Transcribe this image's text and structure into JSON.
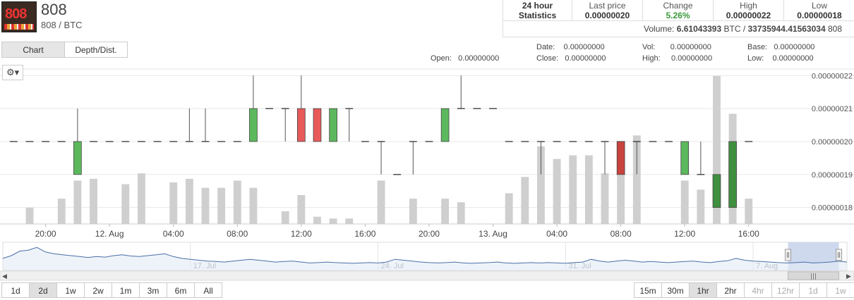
{
  "header": {
    "logo_text": "808",
    "title": "808",
    "subtitle": "808 / BTC"
  },
  "stats": {
    "label_24h": "24 hour Statistics",
    "last_price_label": "Last price",
    "last_price": "0.00000020",
    "change_label": "Change",
    "change": "5.26%",
    "high_label": "High",
    "high": "0.00000022",
    "low_label": "Low",
    "low": "0.00000018",
    "volume_prefix": "Volume:",
    "volume_btc": "6.61043393",
    "volume_btc_unit": "BTC /",
    "volume_token": "33735944.41563034",
    "volume_token_unit": "808"
  },
  "tabs": {
    "chart": "Chart",
    "depth": "Depth/Dist."
  },
  "info": {
    "open_label": "Open:",
    "open": "0.00000000",
    "date_label": "Date:",
    "date": "0.00000000",
    "close_label": "Close:",
    "close": "0.00000000",
    "vol_label": "Vol:",
    "vol": "0.00000000",
    "high_label": "High:",
    "high": "0.00000000",
    "base_label": "Base:",
    "base": "0.00000000",
    "low_label": "Low:",
    "low": "0.00000000"
  },
  "gear_icon": "gear-icon",
  "colors": {
    "up": "#5cb85c",
    "down": "#e85a5a",
    "up_dark": "#3f8f3f",
    "down_dark": "#c8433e",
    "volume": "#cfcfcf",
    "navigator_line": "#4a6fa5",
    "navigator_sel": "#c9d5ec",
    "change": "#3a9a3a"
  },
  "chart_data": {
    "type": "candlestick",
    "ylim": [
      1.75e-07,
      2.22e-07
    ],
    "y_ticks": [
      "0.00000022",
      "0.00000021",
      "0.00000020",
      "0.00000019",
      "0.00000018"
    ],
    "y_tick_values": [
      2.2e-07,
      2.1e-07,
      2e-07,
      1.9e-07,
      1.8e-07
    ],
    "x_ticks": [
      "20:00",
      "12. Aug",
      "04:00",
      "08:00",
      "12:00",
      "16:00",
      "20:00",
      "13. Aug",
      "04:00",
      "08:00",
      "12:00",
      "16:00"
    ],
    "x_tick_hours": [
      0,
      4,
      8,
      12,
      16,
      20,
      24,
      28,
      32,
      36,
      40,
      44
    ],
    "x_range_hours": [
      -2.5,
      47.5
    ],
    "candles": [
      {
        "t": -2,
        "o": 2e-07,
        "h": 2e-07,
        "l": 2e-07,
        "c": 2e-07,
        "v": 0.0
      },
      {
        "t": -1,
        "o": 2e-07,
        "h": 2e-07,
        "l": 2e-07,
        "c": 2e-07,
        "v": 0.9
      },
      {
        "t": 0,
        "o": 2e-07,
        "h": 2e-07,
        "l": 2e-07,
        "c": 2e-07,
        "v": 0.0
      },
      {
        "t": 1,
        "o": 2e-07,
        "h": 2e-07,
        "l": 2e-07,
        "c": 2e-07,
        "v": 1.4
      },
      {
        "t": 2,
        "o": 1.9e-07,
        "h": 2.1e-07,
        "l": 1.9e-07,
        "c": 2e-07,
        "v": 2.4
      },
      {
        "t": 3,
        "o": 2e-07,
        "h": 2e-07,
        "l": 2e-07,
        "c": 2e-07,
        "v": 2.5
      },
      {
        "t": 4,
        "o": 2e-07,
        "h": 2e-07,
        "l": 2e-07,
        "c": 2e-07,
        "v": 0.0
      },
      {
        "t": 5,
        "o": 2e-07,
        "h": 2e-07,
        "l": 2e-07,
        "c": 2e-07,
        "v": 2.2
      },
      {
        "t": 6,
        "o": 2e-07,
        "h": 2e-07,
        "l": 2e-07,
        "c": 2e-07,
        "v": 2.8
      },
      {
        "t": 7,
        "o": 2e-07,
        "h": 2e-07,
        "l": 2e-07,
        "c": 2e-07,
        "v": 0.0
      },
      {
        "t": 8,
        "o": 2e-07,
        "h": 2e-07,
        "l": 2e-07,
        "c": 2e-07,
        "v": 2.3
      },
      {
        "t": 9,
        "o": 2e-07,
        "h": 2.1e-07,
        "l": 2e-07,
        "c": 2e-07,
        "v": 2.5
      },
      {
        "t": 10,
        "o": 2e-07,
        "h": 2.1e-07,
        "l": 2e-07,
        "c": 2e-07,
        "v": 2.0
      },
      {
        "t": 11,
        "o": 2e-07,
        "h": 2e-07,
        "l": 2e-07,
        "c": 2e-07,
        "v": 2.0
      },
      {
        "t": 12,
        "o": 2e-07,
        "h": 2e-07,
        "l": 2e-07,
        "c": 2e-07,
        "v": 2.4
      },
      {
        "t": 13,
        "o": 2e-07,
        "h": 2.2e-07,
        "l": 2e-07,
        "c": 2.1e-07,
        "v": 2.0
      },
      {
        "t": 14,
        "o": 2.1e-07,
        "h": 2.1e-07,
        "l": 2.1e-07,
        "c": 2.1e-07,
        "v": 0.0
      },
      {
        "t": 15,
        "o": 2.1e-07,
        "h": 2.1e-07,
        "l": 2e-07,
        "c": 2.1e-07,
        "v": 0.7
      },
      {
        "t": 16,
        "o": 2.1e-07,
        "h": 2.2e-07,
        "l": 2e-07,
        "c": 2e-07,
        "v": 1.6
      },
      {
        "t": 17,
        "o": 2.1e-07,
        "h": 2.1e-07,
        "l": 2e-07,
        "c": 2e-07,
        "v": 0.4
      },
      {
        "t": 18,
        "o": 2e-07,
        "h": 2.1e-07,
        "l": 2e-07,
        "c": 2.1e-07,
        "v": 0.3
      },
      {
        "t": 19,
        "o": 2.1e-07,
        "h": 2.1e-07,
        "l": 2e-07,
        "c": 2.1e-07,
        "v": 0.3
      },
      {
        "t": 20,
        "o": 2e-07,
        "h": 2e-07,
        "l": 2e-07,
        "c": 2e-07,
        "v": 0.0
      },
      {
        "t": 21,
        "o": 2e-07,
        "h": 2e-07,
        "l": 1.9e-07,
        "c": 2e-07,
        "v": 2.4
      },
      {
        "t": 22,
        "o": 1.9e-07,
        "h": 1.9e-07,
        "l": 1.9e-07,
        "c": 1.9e-07,
        "v": 0.0
      },
      {
        "t": 23,
        "o": 2e-07,
        "h": 2e-07,
        "l": 1.9e-07,
        "c": 2e-07,
        "v": 1.4
      },
      {
        "t": 24,
        "o": 2e-07,
        "h": 2e-07,
        "l": 2e-07,
        "c": 2e-07,
        "v": 0.0
      },
      {
        "t": 25,
        "o": 2e-07,
        "h": 2.1e-07,
        "l": 2e-07,
        "c": 2.1e-07,
        "v": 1.4
      },
      {
        "t": 26,
        "o": 2.1e-07,
        "h": 2.2e-07,
        "l": 2.1e-07,
        "c": 2.1e-07,
        "v": 1.2
      },
      {
        "t": 27,
        "o": 2.1e-07,
        "h": 2.1e-07,
        "l": 2.1e-07,
        "c": 2.1e-07,
        "v": 0.0
      },
      {
        "t": 28,
        "o": 2.1e-07,
        "h": 2.1e-07,
        "l": 2.1e-07,
        "c": 2.1e-07,
        "v": 0.0
      },
      {
        "t": 29,
        "o": 2e-07,
        "h": 2e-07,
        "l": 2e-07,
        "c": 2e-07,
        "v": 1.7
      },
      {
        "t": 30,
        "o": 2e-07,
        "h": 2e-07,
        "l": 2e-07,
        "c": 2e-07,
        "v": 2.6
      },
      {
        "t": 31,
        "o": 2e-07,
        "h": 2e-07,
        "l": 1.9e-07,
        "c": 2e-07,
        "v": 4.3
      },
      {
        "t": 32,
        "o": 2e-07,
        "h": 2e-07,
        "l": 2e-07,
        "c": 2e-07,
        "v": 3.6
      },
      {
        "t": 33,
        "o": 2e-07,
        "h": 2e-07,
        "l": 2e-07,
        "c": 2e-07,
        "v": 3.8
      },
      {
        "t": 34,
        "o": 2e-07,
        "h": 2e-07,
        "l": 2e-07,
        "c": 2e-07,
        "v": 3.8
      },
      {
        "t": 35,
        "o": 2e-07,
        "h": 2e-07,
        "l": 1.9e-07,
        "c": 2e-07,
        "v": 2.8
      },
      {
        "t": 36,
        "o": 2e-07,
        "h": 2e-07,
        "l": 1.9e-07,
        "c": 1.9e-07,
        "v": 4.6
      },
      {
        "t": 37,
        "o": 2e-07,
        "h": 2e-07,
        "l": 1.9e-07,
        "c": 2e-07,
        "v": 4.9
      },
      {
        "t": 38,
        "o": 2e-07,
        "h": 2e-07,
        "l": 2e-07,
        "c": 2e-07,
        "v": 0.0
      },
      {
        "t": 39,
        "o": 2e-07,
        "h": 2e-07,
        "l": 2e-07,
        "c": 2e-07,
        "v": 0.0
      },
      {
        "t": 40,
        "o": 1.9e-07,
        "h": 2e-07,
        "l": 1.9e-07,
        "c": 2e-07,
        "v": 2.4
      },
      {
        "t": 41,
        "o": 1.9e-07,
        "h": 2e-07,
        "l": 1.9e-07,
        "c": 1.9e-07,
        "v": 1.9
      },
      {
        "t": 42,
        "o": 1.8e-07,
        "h": 1.9e-07,
        "l": 1.8e-07,
        "c": 1.9e-07,
        "v": 8.2
      },
      {
        "t": 43,
        "o": 1.8e-07,
        "h": 2e-07,
        "l": 1.8e-07,
        "c": 2e-07,
        "v": 6.1
      },
      {
        "t": 44,
        "o": 2e-07,
        "h": 2e-07,
        "l": 2e-07,
        "c": 2e-07,
        "v": 1.4
      }
    ],
    "volume_max": 8.5,
    "navigator": {
      "labels": [
        "17. Jul",
        "24. Jul",
        "31. Jul",
        "7. Aug"
      ],
      "label_days": [
        7,
        14,
        21,
        28
      ],
      "day_range": [
        0,
        31.5
      ],
      "selection_days": [
        29.3,
        31.2
      ],
      "series": [
        0.35,
        0.5,
        0.75,
        0.8,
        0.95,
        0.7,
        0.6,
        0.55,
        0.5,
        0.45,
        0.4,
        0.45,
        0.42,
        0.5,
        0.55,
        0.48,
        0.45,
        0.5,
        0.55,
        0.6,
        0.45,
        0.35,
        0.3,
        0.25,
        0.2,
        0.18,
        0.15,
        0.2,
        0.25,
        0.3,
        0.25,
        0.2,
        0.15,
        0.18,
        0.2,
        0.15,
        0.1,
        0.12,
        0.15,
        0.12,
        0.1,
        0.08,
        0.1,
        0.12,
        0.1,
        0.15,
        0.3,
        0.25,
        0.2,
        0.15,
        0.12,
        0.1,
        0.12,
        0.15,
        0.1,
        0.08,
        0.1,
        0.12,
        0.15,
        0.1,
        0.08,
        0.1,
        0.12,
        0.1,
        0.12,
        0.1,
        0.08,
        0.12,
        0.15,
        0.3,
        0.2,
        0.15,
        0.2,
        0.25,
        0.2,
        0.15,
        0.18,
        0.15,
        0.12,
        0.15,
        0.18,
        0.2,
        0.15,
        0.12,
        0.18,
        0.22,
        0.35,
        0.25,
        0.2,
        0.18,
        0.15,
        0.12,
        0.1,
        0.12,
        0.15,
        0.1,
        0.12,
        0.15,
        0.2,
        0.15
      ]
    }
  },
  "range_buttons": [
    "1d",
    "2d",
    "1w",
    "2w",
    "1m",
    "3m",
    "6m",
    "All"
  ],
  "range_active": "2d",
  "interval_buttons": [
    "15m",
    "30m",
    "1hr",
    "2hr",
    "4hr",
    "12hr",
    "1d",
    "1w"
  ],
  "interval_active": "1hr",
  "interval_disabled": [
    "4hr",
    "12hr",
    "1d",
    "1w"
  ]
}
